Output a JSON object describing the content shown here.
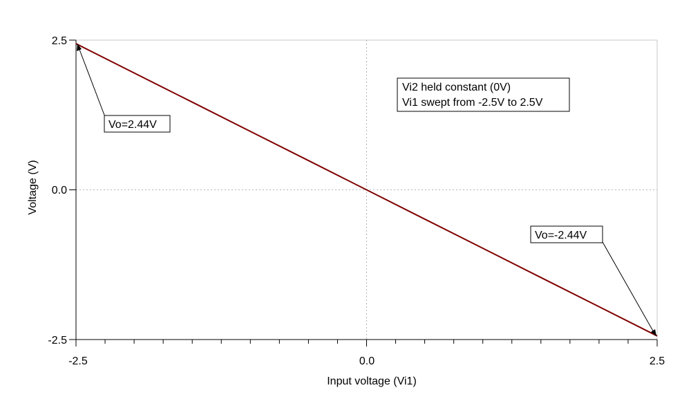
{
  "chart_data": {
    "type": "line",
    "xlabel": "Input voltage (Vi1)",
    "ylabel": "Voltage (V)",
    "xlim": [
      -2.5,
      2.5
    ],
    "ylim": [
      -2.5,
      2.5
    ],
    "x_ticks": [
      "-2.5",
      "0.0",
      "2.5"
    ],
    "y_ticks": [
      "2.5",
      "0.0",
      "-2.5"
    ],
    "grid": "dotted center lines at 0",
    "series": [
      {
        "x": [
          -2.5,
          -2.0,
          -1.5,
          -1.0,
          -0.5,
          0.0,
          0.5,
          1.0,
          1.5,
          2.0,
          2.5
        ],
        "y": [
          2.44,
          1.952,
          1.464,
          0.976,
          0.488,
          0.0,
          -0.488,
          -0.976,
          -1.464,
          -1.952,
          -2.44
        ],
        "color": "#800000"
      }
    ],
    "annotations": [
      {
        "text": "Vo=2.44V",
        "x": -2.5,
        "y": 2.44
      },
      {
        "text": "Vo=-2.44V",
        "x": 2.5,
        "y": -2.44
      }
    ],
    "note_lines": [
      "Vi2 held constant (0V)",
      "Vi1 swept from -2.5V to 2.5V"
    ]
  }
}
